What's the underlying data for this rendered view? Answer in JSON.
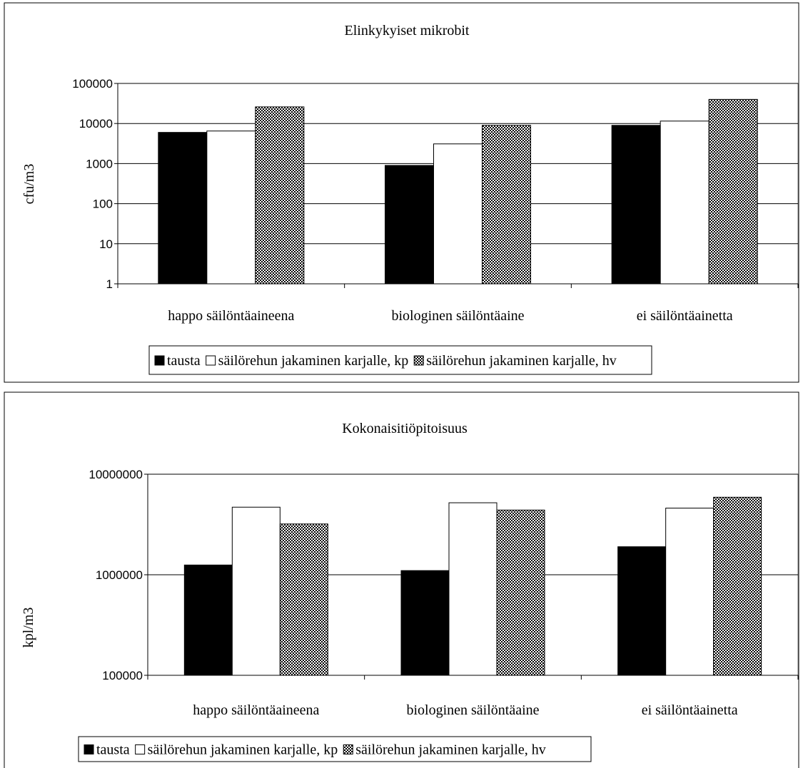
{
  "chart_data": [
    {
      "type": "bar",
      "title": "Elinkykyiset mikrobit",
      "ylabel": "cfu/m3",
      "xlabel": "",
      "yscale": "log",
      "ylim": [
        1,
        100000
      ],
      "ytick_labels": [
        "1",
        "10",
        "100",
        "1000",
        "10000",
        "100000"
      ],
      "grid": true,
      "legend_position": "bottom",
      "categories": [
        "happo säilöntäaineena",
        "biologinen säilöntäaine",
        "ei säilöntäainetta"
      ],
      "series": [
        {
          "name": "tausta",
          "values": [
            6000,
            900,
            9000
          ],
          "color": "#000000",
          "pattern": "solid"
        },
        {
          "name": "säilörehun jakaminen karjalle, kp",
          "values": [
            6500,
            3100,
            11500
          ],
          "color": "#ffffff",
          "pattern": "solid"
        },
        {
          "name": "säilörehun jakaminen karjalle, hv",
          "values": [
            26000,
            9000,
            40000
          ],
          "color": "#000000",
          "pattern": "checker"
        }
      ]
    },
    {
      "type": "bar",
      "title": "Kokonaisitiöpitoisuus",
      "ylabel": "kpl/m3",
      "xlabel": "",
      "yscale": "log",
      "ylim": [
        100000,
        10000000
      ],
      "ytick_labels": [
        "100000",
        "1000000",
        "10000000"
      ],
      "grid": true,
      "legend_position": "bottom",
      "categories": [
        "happo säilöntäaineena",
        "biologinen säilöntäaine",
        "ei säilöntäainetta"
      ],
      "series": [
        {
          "name": "tausta",
          "values": [
            1250000,
            1100000,
            1900000
          ],
          "color": "#000000",
          "pattern": "solid"
        },
        {
          "name": "säilörehun jakaminen karjalle, kp",
          "values": [
            4700000,
            5200000,
            4600000
          ],
          "color": "#ffffff",
          "pattern": "solid"
        },
        {
          "name": "säilörehun jakaminen karjalle, hv",
          "values": [
            3200000,
            4400000,
            5900000
          ],
          "color": "#000000",
          "pattern": "checker"
        }
      ]
    }
  ]
}
